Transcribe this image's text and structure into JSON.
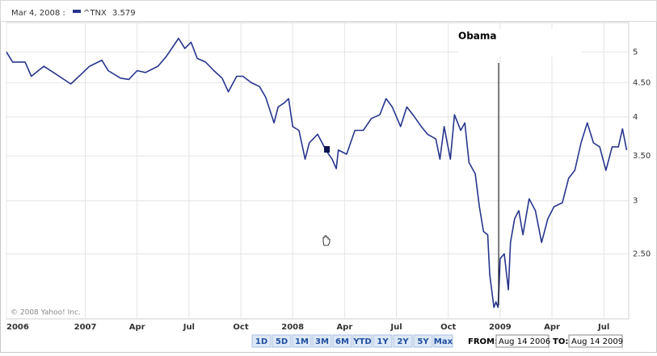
{
  "chart_data": {
    "type": "line",
    "hover": {
      "date": "Mar 4, 2008 :",
      "value": 3.579
    },
    "annotation": "Obama",
    "copyright": "© 2008 Yahoo! Inc.",
    "log_scale": true,
    "grid": true,
    "xlim": [
      2006.62,
      2009.62
    ],
    "ylim": [
      2.0,
      5.5
    ],
    "xticks": [
      {
        "value": 2006.62,
        "label": "2006"
      },
      2007,
      {
        "value": 2007.25,
        "label": "Apr"
      },
      {
        "value": 2007.5,
        "label": "Jul"
      },
      {
        "value": 2007.75,
        "label": "Oct"
      },
      2008,
      {
        "value": 2008.25,
        "label": "Apr"
      },
      {
        "value": 2008.5,
        "label": "Jul"
      },
      {
        "value": 2008.75,
        "label": "Oct"
      },
      2009,
      {
        "value": 2009.25,
        "label": "Apr"
      },
      {
        "value": 2009.5,
        "label": "Jul"
      }
    ],
    "yticks": [
      {
        "value": 2.5,
        "label": "2.50"
      },
      3,
      {
        "value": 3.5,
        "label": "3.50"
      },
      4,
      {
        "value": 4.5,
        "label": "4.50"
      },
      5
    ],
    "x": [
      2006.62,
      2006.65,
      2006.71,
      2006.74,
      2006.8,
      2006.86,
      2006.93,
      2006.98,
      2007.02,
      2007.08,
      2007.11,
      2007.17,
      2007.21,
      2007.25,
      2007.29,
      2007.35,
      2007.39,
      2007.45,
      2007.48,
      2007.51,
      2007.54,
      2007.58,
      2007.62,
      2007.66,
      2007.69,
      2007.73,
      2007.76,
      2007.8,
      2007.84,
      2007.87,
      2007.91,
      2007.93,
      2007.96,
      2007.98,
      2008.0,
      2008.03,
      2008.06,
      2008.08,
      2008.12,
      2008.16,
      2008.19,
      2008.21,
      2008.22,
      2008.26,
      2008.3,
      2008.34,
      2008.38,
      2008.42,
      2008.45,
      2008.48,
      2008.52,
      2008.55,
      2008.58,
      2008.62,
      2008.65,
      2008.69,
      2008.71,
      2008.73,
      2008.76,
      2008.78,
      2008.81,
      2008.83,
      2008.85,
      2008.88,
      2008.9,
      2008.92,
      2008.94,
      2008.95,
      2008.97,
      2008.98,
      2008.99,
      2009.0,
      2009.02,
      2009.04,
      2009.05,
      2009.07,
      2009.09,
      2009.11,
      2009.14,
      2009.17,
      2009.2,
      2009.23,
      2009.26,
      2009.3,
      2009.33,
      2009.36,
      2009.39,
      2009.42,
      2009.45,
      2009.48,
      2009.51,
      2009.54,
      2009.57,
      2009.59,
      2009.61
    ],
    "series": [
      {
        "name": "^TNX",
        "value_label": "3.579",
        "color": "#27358c",
        "values": [
          5.0,
          4.83,
          4.83,
          4.6,
          4.76,
          4.63,
          4.48,
          4.63,
          4.76,
          4.86,
          4.69,
          4.57,
          4.55,
          4.69,
          4.66,
          4.76,
          4.92,
          5.24,
          5.06,
          5.17,
          4.89,
          4.83,
          4.69,
          4.57,
          4.36,
          4.6,
          4.6,
          4.5,
          4.44,
          4.28,
          3.92,
          4.14,
          4.2,
          4.26,
          3.87,
          3.82,
          3.46,
          3.66,
          3.77,
          3.57,
          3.46,
          3.35,
          3.57,
          3.52,
          3.82,
          3.82,
          3.98,
          4.03,
          4.26,
          4.14,
          3.87,
          4.14,
          4.03,
          3.87,
          3.77,
          3.71,
          3.46,
          3.87,
          3.46,
          4.03,
          3.82,
          3.92,
          3.42,
          3.29,
          2.94,
          2.7,
          2.67,
          2.33,
          2.08,
          2.12,
          2.08,
          2.46,
          2.5,
          2.21,
          2.6,
          2.82,
          2.9,
          2.67,
          3.02,
          2.9,
          2.6,
          2.82,
          2.94,
          2.98,
          3.24,
          3.33,
          3.66,
          3.92,
          3.66,
          3.61,
          3.33,
          3.61,
          3.61,
          3.84,
          3.57
        ]
      }
    ]
  },
  "controls": {
    "ranges": [
      "1D",
      "5D",
      "1M",
      "3M",
      "6M",
      "YTD",
      "1Y",
      "2Y",
      "5Y",
      "Max"
    ],
    "from_label": "FROM:",
    "from": "Aug 14 2006",
    "to_label": "TO:",
    "to": "Aug 14 2009"
  }
}
